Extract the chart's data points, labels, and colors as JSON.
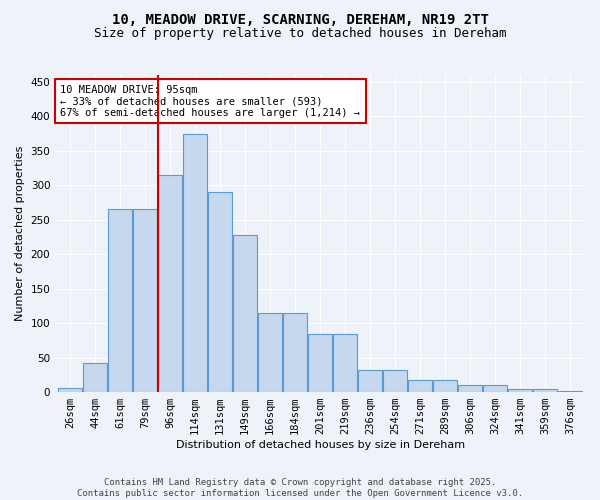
{
  "title_line1": "10, MEADOW DRIVE, SCARNING, DEREHAM, NR19 2TT",
  "title_line2": "Size of property relative to detached houses in Dereham",
  "xlabel": "Distribution of detached houses by size in Dereham",
  "ylabel": "Number of detached properties",
  "categories": [
    "26sqm",
    "44sqm",
    "61sqm",
    "79sqm",
    "96sqm",
    "114sqm",
    "131sqm",
    "149sqm",
    "166sqm",
    "184sqm",
    "201sqm",
    "219sqm",
    "236sqm",
    "254sqm",
    "271sqm",
    "289sqm",
    "306sqm",
    "324sqm",
    "341sqm",
    "359sqm",
    "376sqm"
  ],
  "bar_heights": [
    6,
    42,
    265,
    265,
    315,
    375,
    290,
    228,
    115,
    115,
    84,
    84,
    32,
    32,
    17,
    17,
    11,
    11,
    4,
    4,
    2
  ],
  "bar_color": "#c5d8ed",
  "bar_edge_color": "#5b9bd5",
  "background_color": "#eef3f9",
  "grid_color": "#ffffff",
  "vline_index": 4,
  "vline_color": "#cc0000",
  "annotation_text": "10 MEADOW DRIVE: 95sqm\n← 33% of detached houses are smaller (593)\n67% of semi-detached houses are larger (1,214) →",
  "annotation_box_color": "#ffffff",
  "annotation_box_edge": "#cc0000",
  "ylim": [
    0,
    460
  ],
  "yticks": [
    0,
    50,
    100,
    150,
    200,
    250,
    300,
    350,
    400,
    450
  ],
  "footer": "Contains HM Land Registry data © Crown copyright and database right 2025.\nContains public sector information licensed under the Open Government Licence v3.0.",
  "title_fontsize": 10,
  "subtitle_fontsize": 9,
  "axis_label_fontsize": 8,
  "tick_fontsize": 7.5,
  "annotation_fontsize": 7.5,
  "footer_fontsize": 6.5
}
